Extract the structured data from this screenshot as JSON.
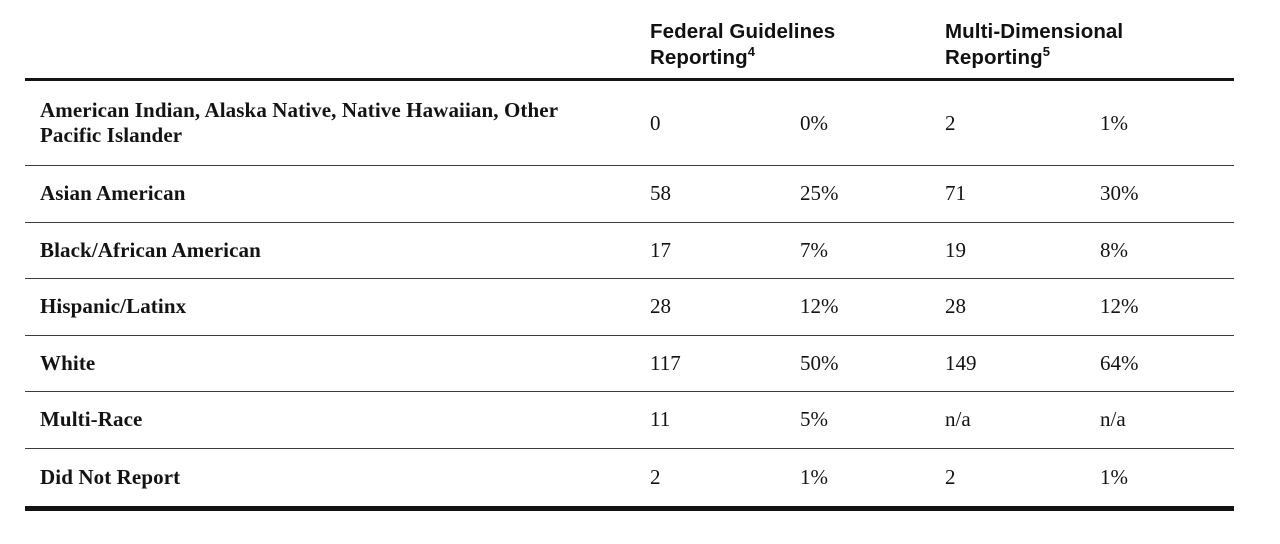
{
  "table": {
    "column_groups": [
      {
        "label": "Federal Guidelines Reporting",
        "superscript": "4"
      },
      {
        "label": "Multi-Dimensional Reporting",
        "superscript": "5"
      }
    ],
    "rows": [
      {
        "label": "American Indian, Alaska Native, Native Hawaiian, Other Pacific Islander",
        "fg_count": "0",
        "fg_pct": "0%",
        "md_count": "2",
        "md_pct": "1%"
      },
      {
        "label": "Asian American",
        "fg_count": "58",
        "fg_pct": "25%",
        "md_count": "71",
        "md_pct": "30%"
      },
      {
        "label": "Black/African American",
        "fg_count": "17",
        "fg_pct": "7%",
        "md_count": "19",
        "md_pct": "8%"
      },
      {
        "label": "Hispanic/Latinx",
        "fg_count": "28",
        "fg_pct": "12%",
        "md_count": "28",
        "md_pct": "12%"
      },
      {
        "label": "White",
        "fg_count": "117",
        "fg_pct": "50%",
        "md_count": "149",
        "md_pct": "64%"
      },
      {
        "label": "Multi-Race",
        "fg_count": "11",
        "fg_pct": "5%",
        "md_count": "n/a",
        "md_pct": "n/a"
      },
      {
        "label": "Did Not Report",
        "fg_count": "2",
        "fg_pct": "1%",
        "md_count": "2",
        "md_pct": "1%"
      }
    ]
  },
  "colors": {
    "text": "#131313",
    "rule_thick": "#141414",
    "rule_thin": "#3d3d3d",
    "background": "#ffffff"
  },
  "chart_data": {
    "type": "table",
    "categories": [
      "American Indian, Alaska Native, Native Hawaiian, Other Pacific Islander",
      "Asian American",
      "Black/African American",
      "Hispanic/Latinx",
      "White",
      "Multi-Race",
      "Did Not Report"
    ],
    "series": [
      {
        "name": "Federal Guidelines Reporting (count)",
        "values": [
          0,
          58,
          17,
          28,
          117,
          11,
          2
        ]
      },
      {
        "name": "Federal Guidelines Reporting (%)",
        "values": [
          "0%",
          "25%",
          "7%",
          "12%",
          "50%",
          "5%",
          "1%"
        ]
      },
      {
        "name": "Multi-Dimensional Reporting (count)",
        "values": [
          2,
          71,
          19,
          28,
          149,
          "n/a",
          2
        ]
      },
      {
        "name": "Multi-Dimensional Reporting (%)",
        "values": [
          "1%",
          "30%",
          "8%",
          "12%",
          "64%",
          "n/a",
          "1%"
        ]
      }
    ]
  }
}
